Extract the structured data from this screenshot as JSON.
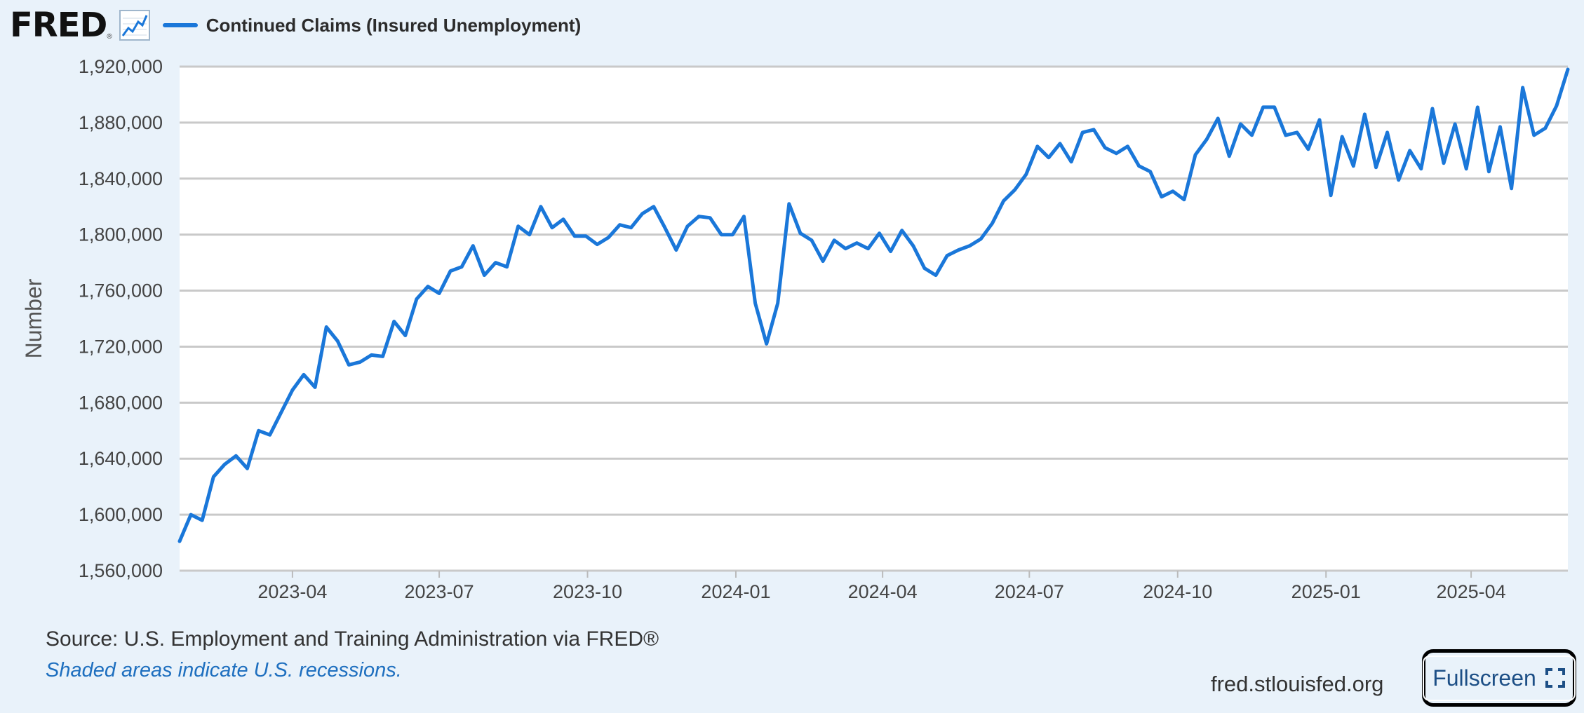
{
  "header": {
    "logo_text": "FRED",
    "logo_reg": "®",
    "logo_icon": "line-chart-icon",
    "legend_label": "Continued Claims (Insured Unemployment)"
  },
  "footer": {
    "source": "Source: U.S. Employment and Training Administration via FRED®",
    "recession_note": "Shaded areas indicate U.S. recessions.",
    "site": "fred.stlouisfed.org",
    "fullscreen_label": "Fullscreen",
    "fullscreen_icon": "expand-icon"
  },
  "colors": {
    "line": "#1a77d9",
    "grid": "#c9c9c9",
    "page_background": "#e9f2fa",
    "plot_background": "#ffffff"
  },
  "chart_data": {
    "type": "line",
    "series": [
      {
        "name": "Continued Claims (Insured Unemployment)",
        "x": [
          "2023-01-21",
          "2023-01-28",
          "2023-02-04",
          "2023-02-11",
          "2023-02-18",
          "2023-02-25",
          "2023-03-04",
          "2023-03-11",
          "2023-03-18",
          "2023-03-25",
          "2023-04-01",
          "2023-04-08",
          "2023-04-15",
          "2023-04-22",
          "2023-04-29",
          "2023-05-06",
          "2023-05-13",
          "2023-05-20",
          "2023-05-27",
          "2023-06-03",
          "2023-06-10",
          "2023-06-17",
          "2023-06-24",
          "2023-07-01",
          "2023-07-08",
          "2023-07-15",
          "2023-07-22",
          "2023-07-29",
          "2023-08-05",
          "2023-08-12",
          "2023-08-19",
          "2023-08-26",
          "2023-09-02",
          "2023-09-09",
          "2023-09-16",
          "2023-09-23",
          "2023-09-30",
          "2023-10-07",
          "2023-10-14",
          "2023-10-21",
          "2023-10-28",
          "2023-11-04",
          "2023-11-11",
          "2023-11-18",
          "2023-11-25",
          "2023-12-02",
          "2023-12-09",
          "2023-12-16",
          "2023-12-23",
          "2023-12-30",
          "2024-01-06",
          "2024-01-13",
          "2024-01-20",
          "2024-01-27",
          "2024-02-03",
          "2024-02-10",
          "2024-02-17",
          "2024-02-24",
          "2024-03-02",
          "2024-03-09",
          "2024-03-16",
          "2024-03-23",
          "2024-03-30",
          "2024-04-06",
          "2024-04-13",
          "2024-04-20",
          "2024-04-27",
          "2024-05-04",
          "2024-05-11",
          "2024-05-18",
          "2024-05-25",
          "2024-06-01",
          "2024-06-08",
          "2024-06-15",
          "2024-06-22",
          "2024-06-29",
          "2024-07-06",
          "2024-07-13",
          "2024-07-20",
          "2024-07-27",
          "2024-08-03",
          "2024-08-10",
          "2024-08-17",
          "2024-08-24",
          "2024-08-31",
          "2024-09-07",
          "2024-09-14",
          "2024-09-21",
          "2024-09-28",
          "2024-10-05",
          "2024-10-12",
          "2024-10-19",
          "2024-10-26",
          "2024-11-02",
          "2024-11-09",
          "2024-11-16",
          "2024-11-23",
          "2024-11-30",
          "2024-12-07",
          "2024-12-14",
          "2024-12-21",
          "2024-12-28",
          "2025-01-04",
          "2025-01-11",
          "2025-01-18",
          "2025-01-25",
          "2025-02-01",
          "2025-02-08",
          "2025-02-15",
          "2025-02-22",
          "2025-03-01",
          "2025-03-08",
          "2025-03-15",
          "2025-03-22",
          "2025-03-29",
          "2025-04-05",
          "2025-04-12",
          "2025-04-19",
          "2025-04-26",
          "2025-05-03",
          "2025-05-10",
          "2025-05-17",
          "2025-05-24",
          "2025-05-31"
        ],
        "values": [
          1581000,
          1600000,
          1596000,
          1627000,
          1636000,
          1642000,
          1633000,
          1660000,
          1657000,
          1673000,
          1689000,
          1700000,
          1691000,
          1734000,
          1724000,
          1707000,
          1709000,
          1714000,
          1713000,
          1738000,
          1728000,
          1754000,
          1763000,
          1758000,
          1774000,
          1777000,
          1792000,
          1771000,
          1780000,
          1777000,
          1806000,
          1800000,
          1820000,
          1805000,
          1811000,
          1799000,
          1799000,
          1793000,
          1798000,
          1807000,
          1805000,
          1815000,
          1820000,
          1805000,
          1789000,
          1806000,
          1813000,
          1812000,
          1800000,
          1800000,
          1813000,
          1751000,
          1722000,
          1751000,
          1822000,
          1801000,
          1796000,
          1781000,
          1796000,
          1790000,
          1794000,
          1790000,
          1801000,
          1788000,
          1803000,
          1792000,
          1776000,
          1771000,
          1785000,
          1789000,
          1792000,
          1797000,
          1808000,
          1824000,
          1832000,
          1843000,
          1863000,
          1855000,
          1865000,
          1852000,
          1873000,
          1875000,
          1862000,
          1858000,
          1863000,
          1849000,
          1845000,
          1827000,
          1831000,
          1825000,
          1857000,
          1868000,
          1883000,
          1856000,
          1879000,
          1871000,
          1891000,
          1891000,
          1871000,
          1873000,
          1861000,
          1882000,
          1828000,
          1870000,
          1849000,
          1886000,
          1848000,
          1873000,
          1839000,
          1860000,
          1847000,
          1890000,
          1851000,
          1879000,
          1847000,
          1891000,
          1845000,
          1877000,
          1833000,
          1905000,
          1871000,
          1876000,
          1892000,
          1918000
        ]
      }
    ],
    "title": "",
    "xlabel": "",
    "ylabel": "Number",
    "x_ticks": [
      "2023-04",
      "2023-07",
      "2023-10",
      "2024-01",
      "2024-04",
      "2024-07",
      "2024-10",
      "2025-01",
      "2025-04"
    ],
    "y_ticks": [
      "1,560,000",
      "1,600,000",
      "1,640,000",
      "1,680,000",
      "1,720,000",
      "1,760,000",
      "1,800,000",
      "1,840,000",
      "1,880,000",
      "1,920,000"
    ],
    "ylim": [
      1560000,
      1920000
    ],
    "xlim": [
      "2023-01-21",
      "2025-05-31"
    ],
    "grid": "horizontal",
    "legend": "top-left"
  }
}
